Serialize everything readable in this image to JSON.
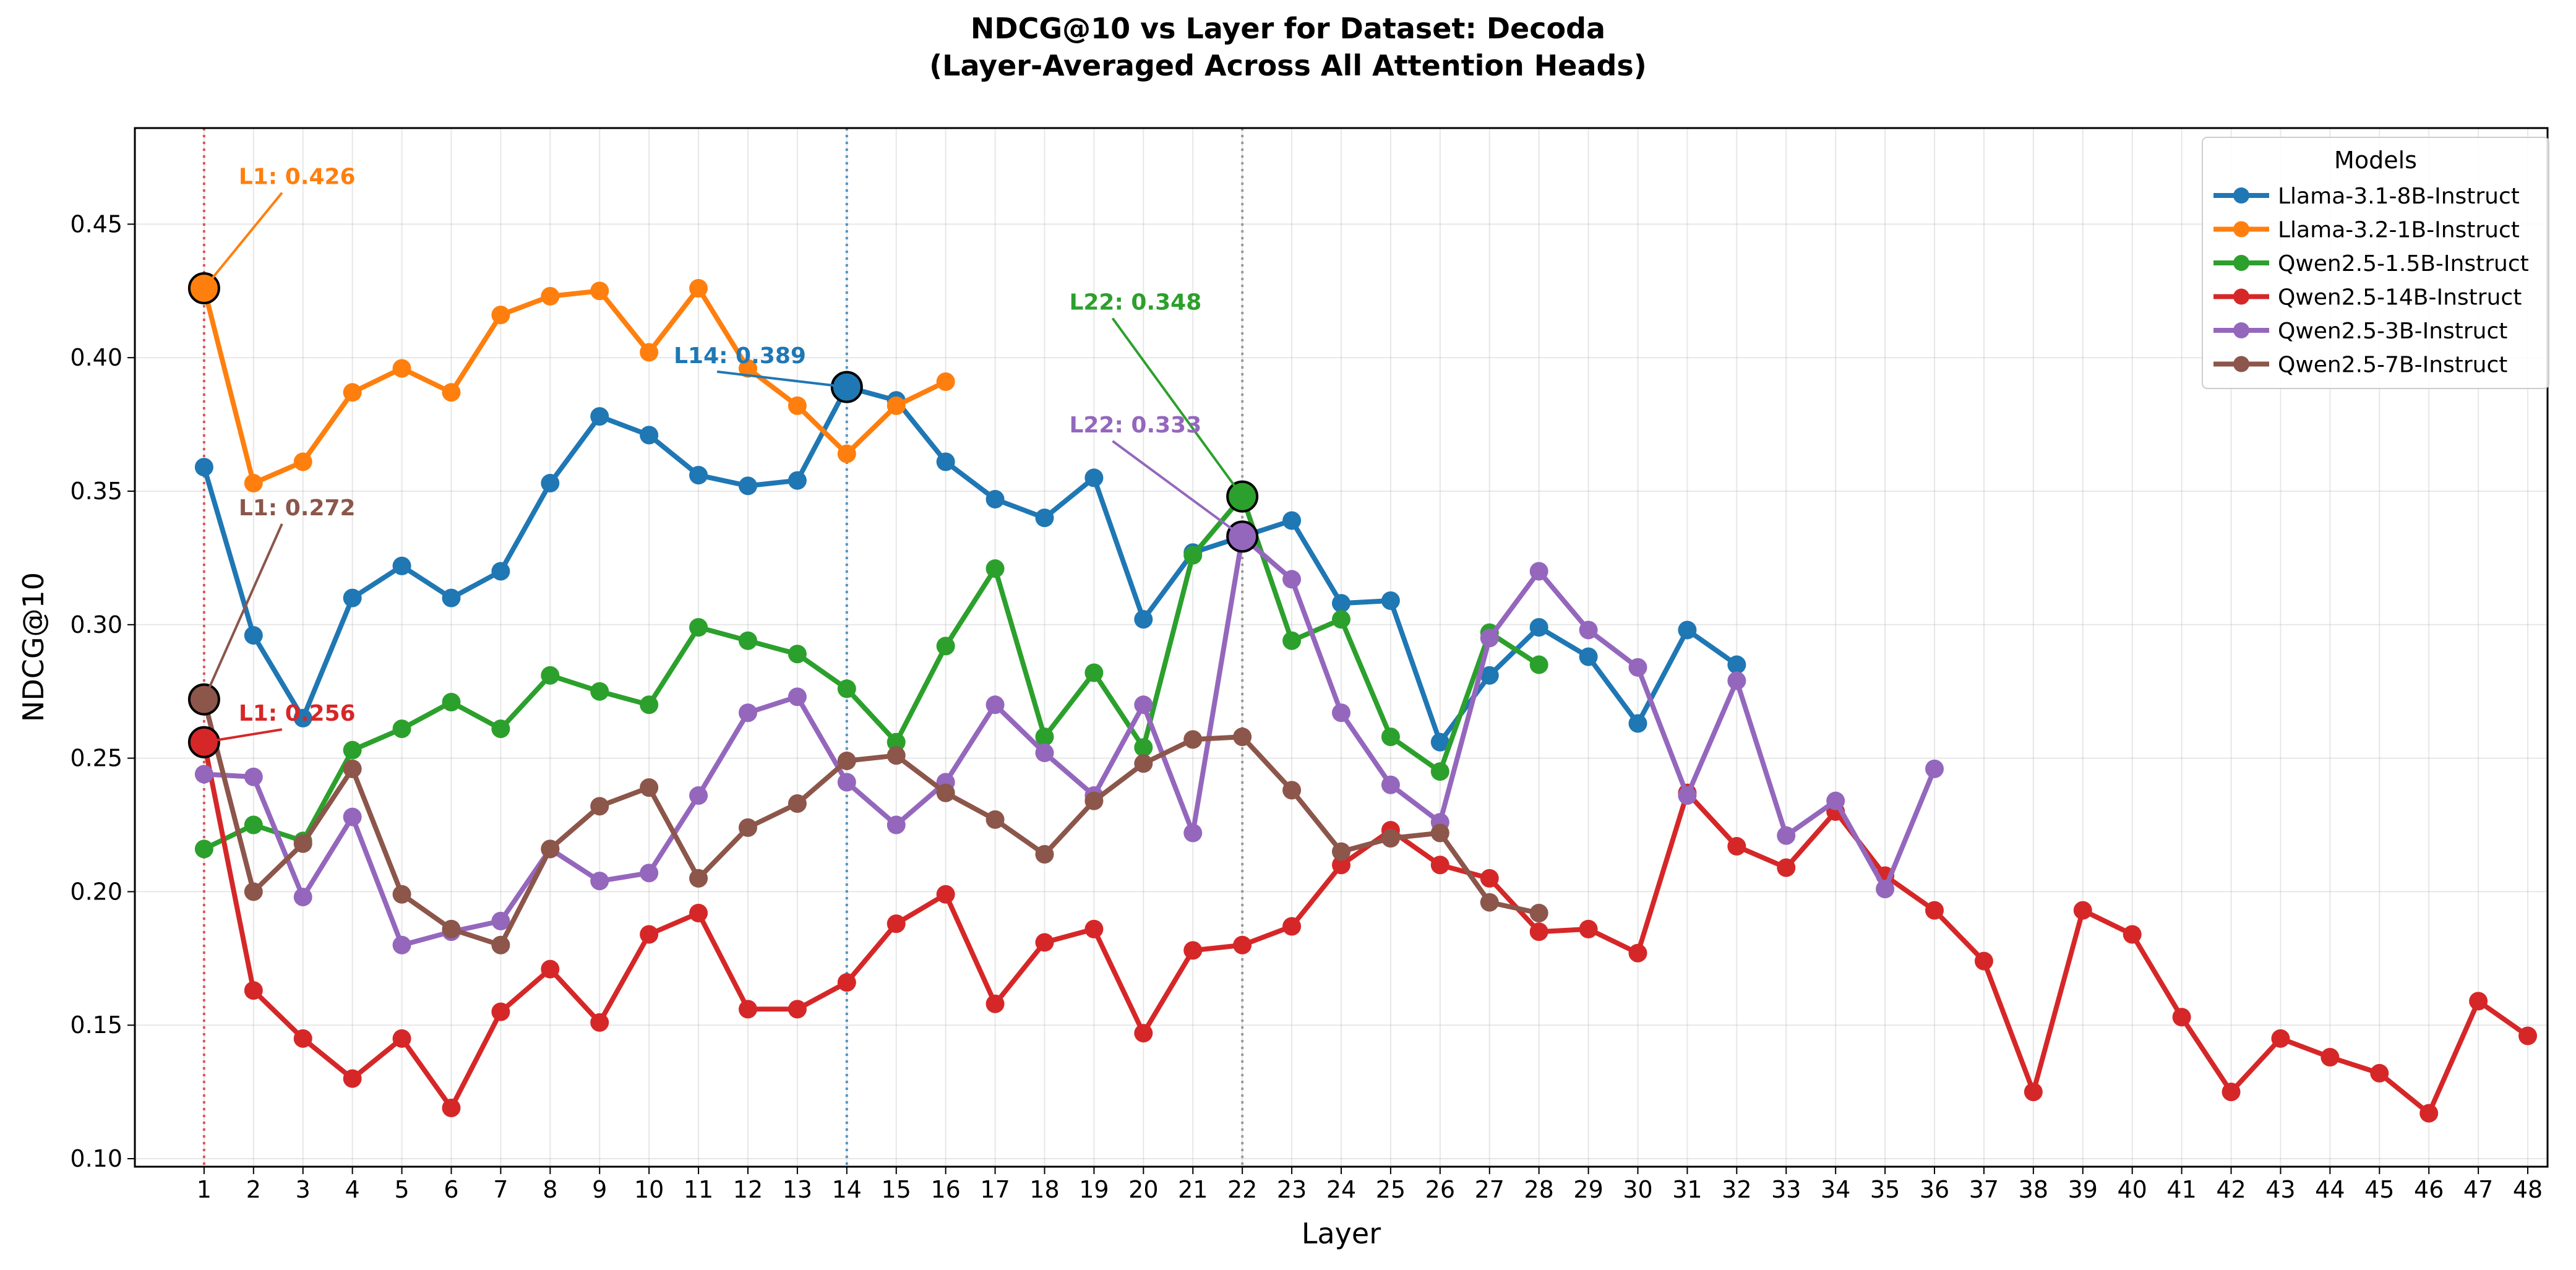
{
  "chart_data": {
    "type": "line",
    "title": "NDCG@10 vs Layer for Dataset: Decoda",
    "subtitle": "(Layer-Averaged Across All Attention Heads)",
    "xlabel": "Layer",
    "ylabel": "NDCG@10",
    "xlim": [
      -0.4,
      48.4
    ],
    "ylim": [
      0.097,
      0.486
    ],
    "x_ticks": [
      1,
      2,
      3,
      4,
      5,
      6,
      7,
      8,
      9,
      10,
      11,
      12,
      13,
      14,
      15,
      16,
      17,
      18,
      19,
      20,
      21,
      22,
      23,
      24,
      25,
      26,
      27,
      28,
      29,
      30,
      31,
      32,
      33,
      34,
      35,
      36,
      37,
      38,
      39,
      40,
      41,
      42,
      43,
      44,
      45,
      46,
      47,
      48
    ],
    "y_ticks": [
      0.1,
      0.15,
      0.2,
      0.25,
      0.3,
      0.35,
      0.4,
      0.45
    ],
    "y_tick_labels": [
      "0.10",
      "0.15",
      "0.20",
      "0.25",
      "0.30",
      "0.35",
      "0.40",
      "0.45"
    ],
    "grid": true,
    "legend": {
      "title": "Models",
      "position": "top-right"
    },
    "series": [
      {
        "name": "Llama-3.1-8B-Instruct",
        "color": "#1f77b4",
        "x": [
          1,
          2,
          3,
          4,
          5,
          6,
          7,
          8,
          9,
          10,
          11,
          12,
          13,
          14,
          15,
          16,
          17,
          18,
          19,
          20,
          21,
          22,
          23,
          24,
          25,
          26,
          27,
          28,
          29,
          30,
          31,
          32
        ],
        "values": [
          0.359,
          0.296,
          0.265,
          0.31,
          0.322,
          0.31,
          0.32,
          0.353,
          0.378,
          0.371,
          0.356,
          0.352,
          0.354,
          0.389,
          0.384,
          0.361,
          0.347,
          0.34,
          0.355,
          0.302,
          0.327,
          0.333,
          0.339,
          0.308,
          0.309,
          0.256,
          0.281,
          0.299,
          0.288,
          0.263,
          0.298,
          0.285
        ]
      },
      {
        "name": "Llama-3.2-1B-Instruct",
        "color": "#ff7f0e",
        "x": [
          1,
          2,
          3,
          4,
          5,
          6,
          7,
          8,
          9,
          10,
          11,
          12,
          13,
          14,
          15,
          16
        ],
        "values": [
          0.426,
          0.353,
          0.361,
          0.387,
          0.396,
          0.387,
          0.416,
          0.423,
          0.425,
          0.402,
          0.426,
          0.396,
          0.382,
          0.364,
          0.382,
          0.391
        ]
      },
      {
        "name": "Qwen2.5-1.5B-Instruct",
        "color": "#2ca02c",
        "x": [
          1,
          2,
          3,
          4,
          5,
          6,
          7,
          8,
          9,
          10,
          11,
          12,
          13,
          14,
          15,
          16,
          17,
          18,
          19,
          20,
          21,
          22,
          23,
          24,
          25,
          26,
          27,
          28
        ],
        "values": [
          0.216,
          0.225,
          0.219,
          0.253,
          0.261,
          0.271,
          0.261,
          0.281,
          0.275,
          0.27,
          0.299,
          0.294,
          0.289,
          0.276,
          0.256,
          0.292,
          0.321,
          0.258,
          0.282,
          0.254,
          0.326,
          0.348,
          0.294,
          0.302,
          0.258,
          0.245,
          0.297,
          0.285
        ]
      },
      {
        "name": "Qwen2.5-14B-Instruct",
        "color": "#d62728",
        "x": [
          1,
          2,
          3,
          4,
          5,
          6,
          7,
          8,
          9,
          10,
          11,
          12,
          13,
          14,
          15,
          16,
          17,
          18,
          19,
          20,
          21,
          22,
          23,
          24,
          25,
          26,
          27,
          28,
          29,
          30,
          31,
          32,
          33,
          34,
          35,
          36,
          37,
          38,
          39,
          40,
          41,
          42,
          43,
          44,
          45,
          46,
          47,
          48
        ],
        "values": [
          0.256,
          0.163,
          0.145,
          0.13,
          0.145,
          0.119,
          0.155,
          0.171,
          0.151,
          0.184,
          0.192,
          0.156,
          0.156,
          0.166,
          0.188,
          0.199,
          0.158,
          0.181,
          0.186,
          0.147,
          0.178,
          0.18,
          0.187,
          0.21,
          0.223,
          0.21,
          0.205,
          0.185,
          0.186,
          0.177,
          0.237,
          0.217,
          0.209,
          0.23,
          0.206,
          0.193,
          0.174,
          0.125,
          0.193,
          0.184,
          0.153,
          0.125,
          0.145,
          0.138,
          0.132,
          0.117,
          0.159,
          0.146
        ]
      },
      {
        "name": "Qwen2.5-3B-Instruct",
        "color": "#9467bd",
        "x": [
          1,
          2,
          3,
          4,
          5,
          6,
          7,
          8,
          9,
          10,
          11,
          12,
          13,
          14,
          15,
          16,
          17,
          18,
          19,
          20,
          21,
          22,
          23,
          24,
          25,
          26,
          27,
          28,
          29,
          30,
          31,
          32,
          33,
          34,
          35,
          36
        ],
        "values": [
          0.244,
          0.243,
          0.198,
          0.228,
          0.18,
          0.185,
          0.189,
          0.216,
          0.204,
          0.207,
          0.236,
          0.267,
          0.273,
          0.241,
          0.225,
          0.241,
          0.27,
          0.252,
          0.236,
          0.27,
          0.222,
          0.333,
          0.317,
          0.267,
          0.24,
          0.226,
          0.295,
          0.32,
          0.298,
          0.284,
          0.236,
          0.279,
          0.221,
          0.234,
          0.201,
          0.246
        ]
      },
      {
        "name": "Qwen2.5-7B-Instruct",
        "color": "#8c564b",
        "x": [
          1,
          2,
          3,
          4,
          5,
          6,
          7,
          8,
          9,
          10,
          11,
          12,
          13,
          14,
          15,
          16,
          17,
          18,
          19,
          20,
          21,
          22,
          23,
          24,
          25,
          26,
          27,
          28
        ],
        "values": [
          0.272,
          0.2,
          0.218,
          0.246,
          0.199,
          0.186,
          0.18,
          0.216,
          0.232,
          0.239,
          0.205,
          0.224,
          0.233,
          0.249,
          0.251,
          0.237,
          0.227,
          0.214,
          0.234,
          0.248,
          0.257,
          0.258,
          0.238,
          0.215,
          0.22,
          0.222,
          0.196,
          0.192
        ]
      }
    ],
    "vlines": [
      {
        "x": 1,
        "color": "#d62728"
      },
      {
        "x": 14,
        "color": "#1f77b4"
      },
      {
        "x": 22,
        "color": "#7f7f7f"
      }
    ],
    "annotations": [
      {
        "text": "L1: 0.426",
        "series": "Llama-3.2-1B-Instruct",
        "x": 1,
        "y": 0.426,
        "text_x": 1.7,
        "text_y": 0.465,
        "color": "#ff7f0e"
      },
      {
        "text": "L14: 0.389",
        "series": "Llama-3.1-8B-Instruct",
        "x": 14,
        "y": 0.389,
        "text_x": 10.5,
        "text_y": 0.398,
        "color": "#1f77b4"
      },
      {
        "text": "L22: 0.348",
        "series": "Qwen2.5-1.5B-Instruct",
        "x": 22,
        "y": 0.348,
        "text_x": 18.5,
        "text_y": 0.418,
        "color": "#2ca02c"
      },
      {
        "text": "L22: 0.333",
        "series": "Qwen2.5-3B-Instruct",
        "x": 22,
        "y": 0.333,
        "text_x": 18.5,
        "text_y": 0.372,
        "color": "#9467bd"
      },
      {
        "text": "L1: 0.272",
        "series": "Qwen2.5-7B-Instruct",
        "x": 1,
        "y": 0.272,
        "text_x": 1.7,
        "text_y": 0.341,
        "color": "#8c564b"
      },
      {
        "text": "L1: 0.256",
        "series": "Qwen2.5-14B-Instruct",
        "x": 1,
        "y": 0.256,
        "text_x": 1.7,
        "text_y": 0.264,
        "color": "#d62728"
      }
    ]
  }
}
